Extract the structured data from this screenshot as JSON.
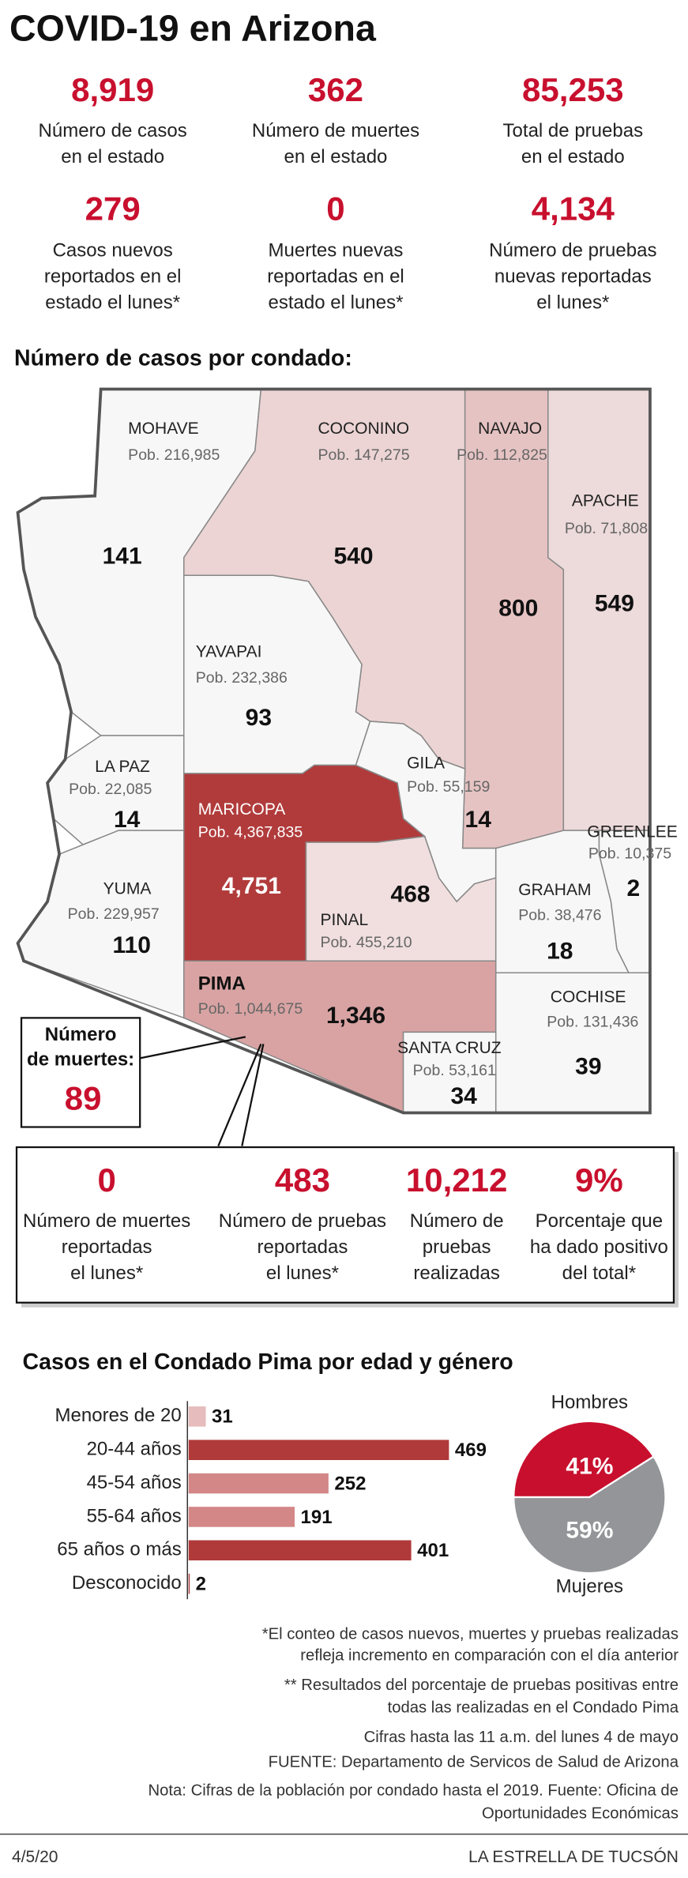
{
  "header": {
    "title": "COVID-19 en Arizona"
  },
  "state_stats": [
    {
      "value": "8,919",
      "label": [
        "Número de casos",
        "en el estado"
      ]
    },
    {
      "value": "362",
      "label": [
        "Número de muertes",
        "en el estado"
      ]
    },
    {
      "value": "85,253",
      "label": [
        "Total de pruebas",
        "en el estado"
      ]
    },
    {
      "value": "279",
      "label": [
        "Casos nuevos",
        "reportados en el",
        "estado el lunes*"
      ]
    },
    {
      "value": "0",
      "label": [
        "Muertes nuevas",
        "reportadas en el",
        "estado el lunes*"
      ]
    },
    {
      "value": "4,134",
      "label": [
        "Número de pruebas",
        "nuevas reportadas",
        "el lunes*"
      ]
    }
  ],
  "map": {
    "title": "Número de casos por condado:",
    "counties": [
      {
        "name": "MOHAVE",
        "population": "Pob. 216,985",
        "cases": "141"
      },
      {
        "name": "COCONINO",
        "population": "Pob. 147,275",
        "cases": "540"
      },
      {
        "name": "NAVAJO",
        "population": "Pob. 112,825",
        "cases": "800"
      },
      {
        "name": "APACHE",
        "population": "Pob. 71,808",
        "cases": "549"
      },
      {
        "name": "YAVAPAI",
        "population": "Pob. 232,386",
        "cases": "93"
      },
      {
        "name": "LA PAZ",
        "population": "Pob. 22,085",
        "cases": "14"
      },
      {
        "name": "GILA",
        "population": "Pob. 55,159",
        "cases": "14"
      },
      {
        "name": "MARICOPA",
        "population": "Pob. 4,367,835",
        "cases": "4,751"
      },
      {
        "name": "GREENLEE",
        "population": "Pob. 10,375",
        "cases": "2"
      },
      {
        "name": "YUMA",
        "population": "Pob. 229,957",
        "cases": "110"
      },
      {
        "name": "PINAL",
        "population": "Pob. 455,210",
        "cases": "468"
      },
      {
        "name": "GRAHAM",
        "population": "Pob. 38,476",
        "cases": "18"
      },
      {
        "name": "PIMA",
        "population": "Pob. 1,044,675",
        "cases": "1,346"
      },
      {
        "name": "COCHISE",
        "population": "Pob. 131,436",
        "cases": "39"
      },
      {
        "name": "SANTA CRUZ",
        "population": "Pob. 53,161",
        "cases": "34"
      }
    ],
    "pima_deaths": {
      "label": [
        "Número",
        "de muertes:"
      ],
      "value": "89"
    },
    "pima_stats": [
      {
        "value": "0",
        "label": [
          "Número de muertes",
          "reportadas",
          "el lunes*"
        ]
      },
      {
        "value": "483",
        "label": [
          "Número de pruebas",
          "reportadas",
          "el lunes*"
        ]
      },
      {
        "value": "10,212",
        "label": [
          "Número de",
          "pruebas",
          "realizadas"
        ]
      },
      {
        "value": "9%",
        "label": [
          "Porcentaje que",
          "ha dado positivo",
          "del total*"
        ]
      }
    ]
  },
  "chart_data": [
    {
      "type": "bar",
      "title": "Casos en el Condado Pima por edad y género",
      "categories": [
        "Menores de 20",
        "20-44 años",
        "45-54 años",
        "55-64 años",
        "65 años o más",
        "Desconocido"
      ],
      "values": [
        31,
        469,
        252,
        191,
        401,
        2
      ],
      "colors": [
        "#e6bcbc",
        "#b03a3a",
        "#d38787",
        "#d38787",
        "#b03a3a",
        "#b03a3a"
      ]
    },
    {
      "type": "pie",
      "categories": [
        "Hombres",
        "Mujeres"
      ],
      "values": [
        41,
        59
      ],
      "value_labels": [
        "41%",
        "59%"
      ],
      "colors": [
        "#c8102e",
        "#939598"
      ]
    }
  ],
  "notes": [
    "*El conteo de casos nuevos, muertes y pruebas realizadas",
    "refleja incremento en comparación con el día anterior",
    "** Resultados del porcentaje de pruebas positivas entre",
    "todas las realizadas en el Condado Pima",
    "Cifras hasta las 11 a.m. del lunes 4 de mayo",
    "FUENTE: Departamento de Servicos de Salud de Arizona",
    "Nota: Cifras de la población por condado hasta el 2019. Fuente: Oficina de",
    "Oportunidades Económicas"
  ],
  "footer": {
    "date": "4/5/20",
    "source": "LA ESTRELLA DE TUCSÓN"
  }
}
